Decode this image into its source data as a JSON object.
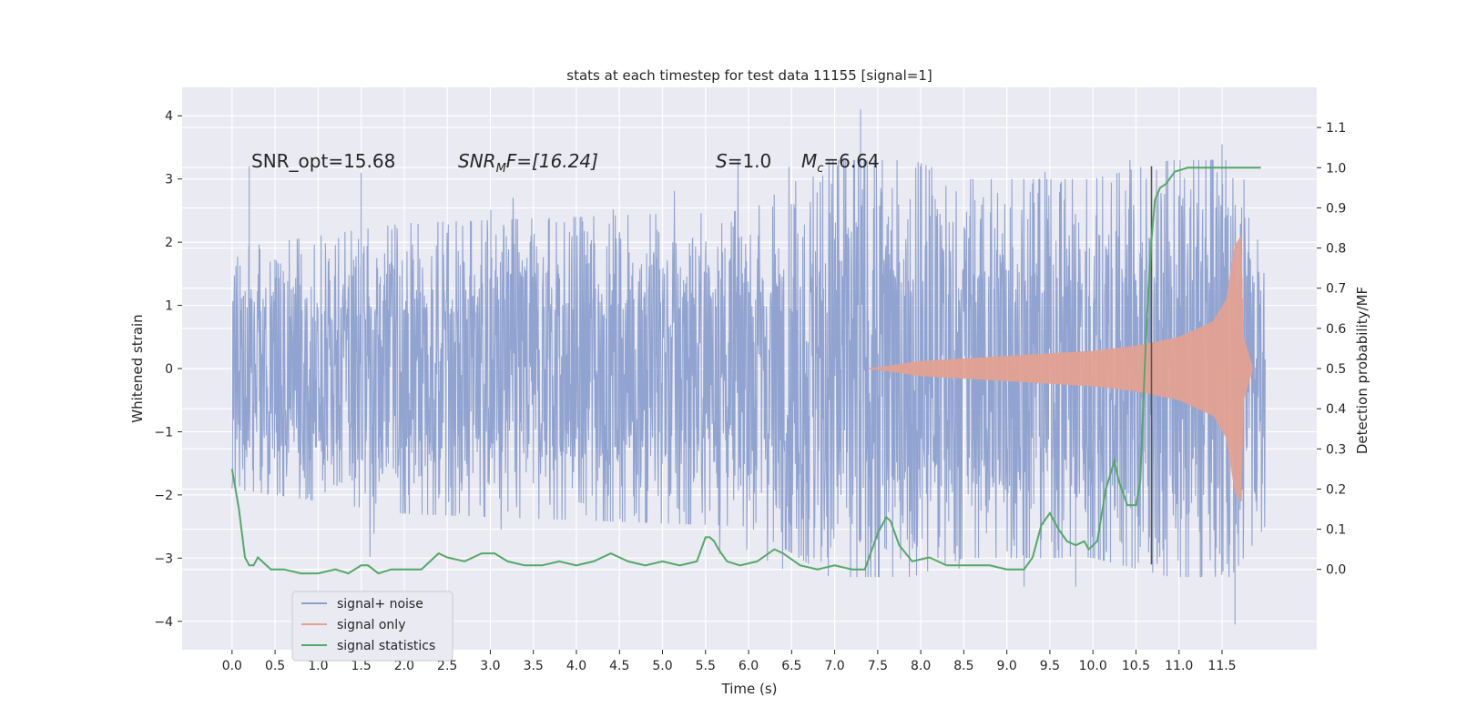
{
  "chart_data": {
    "type": "line",
    "title": "stats at each timestep for test data 11155 [signal=1]",
    "xlabel": "Time (s)",
    "ylabel": "Whitened strain",
    "y2label": "Detection probability/MF",
    "xlim": [
      -0.58,
      12.6
    ],
    "ylim": [
      -4.45,
      4.45
    ],
    "y2lim": [
      -0.2,
      1.2
    ],
    "x_ticks": [
      0.0,
      0.5,
      1.0,
      1.5,
      2.0,
      2.5,
      3.0,
      3.5,
      4.0,
      4.5,
      5.0,
      5.5,
      6.0,
      6.5,
      7.0,
      7.5,
      8.0,
      8.5,
      9.0,
      9.5,
      10.0,
      10.5,
      11.0,
      11.5
    ],
    "x_tick_labels": [
      "0.0",
      "0.5",
      "1.0",
      "1.5",
      "2.0",
      "2.5",
      "3.0",
      "3.5",
      "4.0",
      "4.5",
      "5.0",
      "5.5",
      "6.0",
      "6.5",
      "7.0",
      "7.5",
      "8.0",
      "8.5",
      "9.0",
      "9.5",
      "10.0",
      "10.5",
      "11.0",
      "11.5"
    ],
    "y_ticks": [
      4,
      3,
      2,
      1,
      0,
      -1,
      -2,
      -3,
      -4
    ],
    "y_tick_labels": [
      "4",
      "3",
      "2",
      "1",
      "0",
      "−1",
      "−2",
      "−3",
      "−4"
    ],
    "y2_ticks": [
      1.1,
      1.0,
      0.9,
      0.8,
      0.7,
      0.6,
      0.5,
      0.4,
      0.3,
      0.2,
      0.1,
      0.0
    ],
    "y2_tick_labels": [
      "1.1",
      "1.0",
      "0.9",
      "0.8",
      "0.7",
      "0.6",
      "0.5",
      "0.4",
      "0.3",
      "0.2",
      "0.1",
      "0.0"
    ],
    "grid": true,
    "legend_position": "lower-left",
    "annotations": {
      "snr_opt": "SNR_opt=15.68",
      "snr_mf_base": "SNR",
      "snr_mf_sub": "M",
      "snr_mf_rest": "F=[16.24]",
      "s_var": "S",
      "s_rest": "=1.0",
      "mc_var": "M",
      "mc_sub": "c",
      "mc_rest": "=6.64"
    },
    "series": [
      {
        "name": "signal+ noise",
        "color": "#8c9fcd",
        "x_range": [
          0.0,
          12.0
        ],
        "envelope": [
          [
            0.0,
            1.9
          ],
          [
            2.0,
            2.3
          ],
          [
            4.0,
            2.4
          ],
          [
            6.0,
            2.5
          ],
          [
            7.3,
            3.6
          ],
          [
            8.5,
            3.0
          ],
          [
            10.0,
            3.0
          ],
          [
            11.5,
            3.5
          ],
          [
            12.0,
            2.5
          ]
        ],
        "notable_peaks": [
          [
            0.2,
            3.2
          ],
          [
            1.5,
            3.1
          ],
          [
            7.3,
            4.1
          ],
          [
            9.2,
            -3.45
          ],
          [
            9.8,
            -3.45
          ],
          [
            11.65,
            -4.05
          ],
          [
            11.5,
            3.55
          ]
        ]
      },
      {
        "name": "signal only",
        "color": "#e3a192",
        "x_range": [
          7.4,
          11.85
        ],
        "envelope": [
          [
            7.4,
            0.0
          ],
          [
            8.0,
            0.12
          ],
          [
            9.0,
            0.2
          ],
          [
            10.0,
            0.28
          ],
          [
            10.5,
            0.36
          ],
          [
            11.0,
            0.5
          ],
          [
            11.4,
            0.75
          ],
          [
            11.55,
            1.1
          ],
          [
            11.65,
            1.95
          ],
          [
            11.72,
            2.1
          ],
          [
            11.75,
            0.5
          ],
          [
            11.85,
            0.05
          ]
        ]
      },
      {
        "name": "signal statistics",
        "color": "#55a868",
        "axis": "right",
        "x": [
          0.0,
          0.08,
          0.15,
          0.2,
          0.25,
          0.3,
          0.35,
          0.45,
          0.6,
          0.8,
          1.0,
          1.2,
          1.35,
          1.5,
          1.58,
          1.7,
          1.85,
          2.0,
          2.2,
          2.4,
          2.5,
          2.7,
          2.9,
          3.05,
          3.2,
          3.4,
          3.6,
          3.8,
          4.0,
          4.2,
          4.4,
          4.5,
          4.6,
          4.8,
          5.0,
          5.2,
          5.4,
          5.5,
          5.55,
          5.6,
          5.65,
          5.75,
          5.9,
          6.1,
          6.3,
          6.4,
          6.6,
          6.8,
          7.0,
          7.2,
          7.35,
          7.5,
          7.6,
          7.65,
          7.75,
          7.9,
          8.1,
          8.3,
          8.5,
          8.8,
          9.0,
          9.2,
          9.3,
          9.4,
          9.5,
          9.6,
          9.7,
          9.8,
          9.9,
          9.95,
          10.05,
          10.15,
          10.25,
          10.3,
          10.4,
          10.5,
          10.55,
          10.62,
          10.68,
          10.72,
          10.78,
          10.85,
          10.95,
          11.1,
          11.2,
          11.4,
          11.6,
          11.8,
          11.95
        ],
        "y": [
          0.25,
          0.15,
          0.03,
          0.01,
          0.01,
          0.03,
          0.02,
          0.0,
          0.0,
          -0.01,
          -0.01,
          0.0,
          -0.01,
          0.01,
          0.01,
          -0.01,
          0.0,
          0.0,
          0.0,
          0.04,
          0.03,
          0.02,
          0.04,
          0.04,
          0.02,
          0.01,
          0.01,
          0.02,
          0.01,
          0.02,
          0.04,
          0.03,
          0.02,
          0.01,
          0.02,
          0.01,
          0.02,
          0.08,
          0.08,
          0.07,
          0.05,
          0.02,
          0.01,
          0.02,
          0.05,
          0.04,
          0.01,
          0.0,
          0.01,
          0.0,
          0.0,
          0.09,
          0.13,
          0.12,
          0.06,
          0.02,
          0.03,
          0.01,
          0.01,
          0.01,
          0.0,
          0.0,
          0.03,
          0.11,
          0.14,
          0.1,
          0.07,
          0.06,
          0.07,
          0.05,
          0.07,
          0.2,
          0.27,
          0.22,
          0.16,
          0.16,
          0.22,
          0.6,
          0.82,
          0.92,
          0.95,
          0.96,
          0.99,
          1.0,
          1.0,
          1.0,
          1.0,
          1.0,
          1.0
        ]
      }
    ],
    "vertical_marker": {
      "x": 10.68,
      "y_range": [
        -3.1,
        3.2
      ],
      "color": "#555555"
    }
  }
}
